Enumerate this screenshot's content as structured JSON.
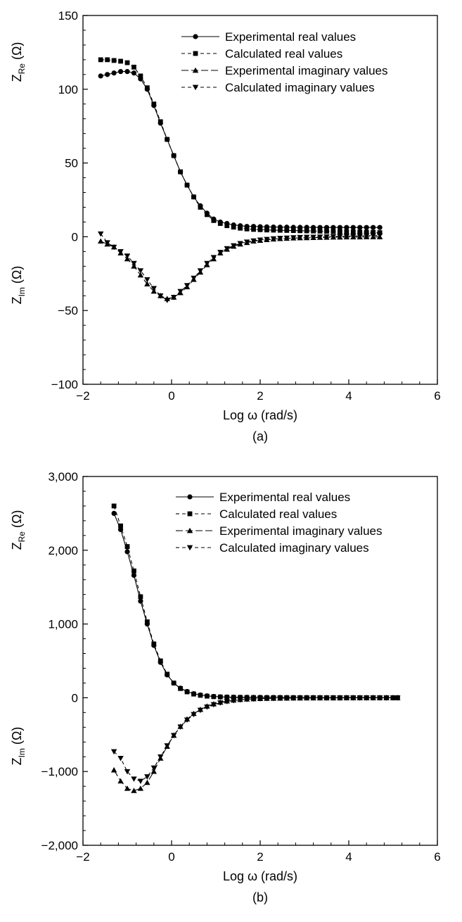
{
  "figure": {
    "panel_a_label": "(a)",
    "panel_b_label": "(b)"
  },
  "chart_data": [
    {
      "panel": "(a)",
      "type": "line",
      "title": "",
      "xlabel": "Log ω (rad/s)",
      "ylabel_top": {
        "main": "Z",
        "sub": "Re",
        "unit": " (Ω)"
      },
      "ylabel_bottom": {
        "main": "Z",
        "sub": "Im",
        "unit": " (Ω)"
      },
      "xlim": [
        -2,
        6
      ],
      "ylim": [
        -100,
        150
      ],
      "xticks": [
        -2,
        0,
        2,
        4,
        6
      ],
      "yticks": [
        -100,
        -50,
        0,
        50,
        100,
        150
      ],
      "xtick_labels": [
        "−2",
        "0",
        "2",
        "4",
        "6"
      ],
      "ytick_labels": [
        "−100",
        "−50",
        "0",
        "50",
        "100",
        "150"
      ],
      "grid": false,
      "legend_position": "top-right",
      "series": [
        {
          "name": "Experimental real values",
          "marker": "circle",
          "dash": "solid",
          "x": [
            -1.6,
            -1.45,
            -1.3,
            -1.15,
            -1.0,
            -0.85,
            -0.7,
            -0.55,
            -0.4,
            -0.25,
            -0.1,
            0.05,
            0.2,
            0.35,
            0.5,
            0.65,
            0.8,
            0.95,
            1.1,
            1.25,
            1.4,
            1.55,
            1.7,
            1.85,
            2.0,
            2.15,
            2.3,
            2.45,
            2.6,
            2.75,
            2.9,
            3.05,
            3.2,
            3.35,
            3.5,
            3.65,
            3.8,
            3.95,
            4.1,
            4.25,
            4.4,
            4.55,
            4.7
          ],
          "y": [
            109,
            110,
            111,
            112,
            112,
            111,
            107,
            100,
            89,
            77,
            66,
            55,
            44,
            35,
            27,
            21,
            16,
            12,
            10,
            9,
            8,
            7.5,
            7,
            7,
            6.8,
            6.7,
            6.6,
            6.5,
            6.5,
            6.4,
            6.4,
            6.4,
            6.3,
            6.3,
            6.3,
            6.3,
            6.3,
            6.3,
            6.3,
            6.3,
            6.3,
            6.3,
            6.3
          ]
        },
        {
          "name": "Calculated real values",
          "marker": "square",
          "dash": "dashed",
          "x": [
            -1.6,
            -1.45,
            -1.3,
            -1.15,
            -1.0,
            -0.85,
            -0.7,
            -0.55,
            -0.4,
            -0.25,
            -0.1,
            0.05,
            0.2,
            0.35,
            0.5,
            0.65,
            0.8,
            0.95,
            1.1,
            1.25,
            1.4,
            1.55,
            1.7,
            1.85,
            2.0,
            2.15,
            2.3,
            2.45,
            2.6,
            2.75,
            2.9,
            3.05,
            3.2,
            3.35,
            3.5,
            3.65,
            3.8,
            3.95,
            4.1,
            4.25,
            4.4,
            4.55,
            4.7
          ],
          "y": [
            120,
            120,
            119.5,
            119,
            118,
            115,
            109,
            101,
            90,
            78,
            66,
            55,
            44,
            35,
            27,
            20,
            15,
            11,
            9,
            7.5,
            6.5,
            5.8,
            5.3,
            5,
            4.8,
            4.6,
            4.5,
            4.4,
            4.3,
            4.2,
            4.1,
            4,
            3.9,
            3.8,
            3.7,
            3.6,
            3.5,
            3.4,
            3.3,
            3.2,
            3.1,
            3.0,
            2.8
          ]
        },
        {
          "name": "Experimental imaginary values",
          "marker": "triangle-up",
          "dash": "long-dash",
          "x": [
            -1.6,
            -1.45,
            -1.3,
            -1.15,
            -1.0,
            -0.85,
            -0.7,
            -0.55,
            -0.4,
            -0.25,
            -0.1,
            0.05,
            0.2,
            0.35,
            0.5,
            0.65,
            0.8,
            0.95,
            1.1,
            1.25,
            1.4,
            1.55,
            1.7,
            1.85,
            2.0,
            2.15,
            2.3,
            2.45,
            2.6,
            2.75,
            2.9,
            3.05,
            3.2,
            3.35,
            3.5,
            3.65,
            3.8,
            3.95,
            4.1,
            4.25,
            4.4,
            4.55,
            4.7
          ],
          "y": [
            -3,
            -5,
            -7,
            -11,
            -15,
            -20,
            -26,
            -32,
            -37,
            -40,
            -42,
            -41,
            -38,
            -34,
            -29,
            -24,
            -19,
            -15,
            -11,
            -8.5,
            -6.5,
            -5,
            -4,
            -3,
            -2.5,
            -2,
            -1.6,
            -1.3,
            -1.1,
            -0.9,
            -0.8,
            -0.7,
            -0.6,
            -0.5,
            -0.4,
            -0.3,
            -0.3,
            -0.2,
            -0.2,
            -0.2,
            -0.1,
            -0.1,
            -0.1
          ]
        },
        {
          "name": "Calculated imaginary values",
          "marker": "triangle-down",
          "dash": "dashed",
          "x": [
            -1.6,
            -1.45,
            -1.3,
            -1.15,
            -1.0,
            -0.85,
            -0.7,
            -0.55,
            -0.4,
            -0.25,
            -0.1,
            0.05,
            0.2,
            0.35,
            0.5,
            0.65,
            0.8,
            0.95,
            1.1,
            1.25,
            1.4,
            1.55,
            1.7,
            1.85,
            2.0,
            2.15,
            2.3,
            2.45,
            2.6,
            2.75,
            2.9,
            3.05,
            3.2,
            3.35,
            3.5,
            3.65,
            3.8,
            3.95,
            4.1,
            4.25,
            4.4,
            4.55,
            4.7
          ],
          "y": [
            2,
            -4,
            -7,
            -10,
            -13,
            -18,
            -23,
            -29,
            -35,
            -40,
            -43,
            -41,
            -37,
            -33,
            -28,
            -23,
            -18,
            -14,
            -10.5,
            -8,
            -6,
            -4.5,
            -3.5,
            -2.7,
            -2.1,
            -1.7,
            -1.3,
            -1.0,
            -0.8,
            -0.6,
            -0.4,
            -0.3,
            -0.2,
            -0.1,
            0,
            0.2,
            0.3,
            0.4,
            0.5,
            0.6,
            0.7,
            0.8,
            0.9
          ]
        }
      ]
    },
    {
      "panel": "(b)",
      "type": "line",
      "title": "",
      "xlabel": "Log ω (rad/s)",
      "ylabel_top": {
        "main": "Z",
        "sub": "Re",
        "unit": " (Ω)"
      },
      "ylabel_bottom": {
        "main": "Z",
        "sub": "Im",
        "unit": " (Ω)"
      },
      "xlim": [
        -2,
        6
      ],
      "ylim": [
        -2000,
        3000
      ],
      "xticks": [
        -2,
        0,
        2,
        4,
        6
      ],
      "yticks": [
        -2000,
        -1000,
        0,
        1000,
        2000,
        3000
      ],
      "xtick_labels": [
        "−2",
        "0",
        "2",
        "4",
        "6"
      ],
      "ytick_labels": [
        "−2,000",
        "−1,000",
        "0",
        "1,000",
        "2,000",
        "3,000"
      ],
      "grid": false,
      "legend_position": "top-right",
      "series": [
        {
          "name": "Experimental real values",
          "marker": "circle",
          "dash": "solid",
          "x": [
            -1.3,
            -1.15,
            -1.0,
            -0.85,
            -0.7,
            -0.55,
            -0.4,
            -0.25,
            -0.1,
            0.05,
            0.2,
            0.35,
            0.5,
            0.65,
            0.8,
            0.95,
            1.1,
            1.25,
            1.4,
            1.55,
            1.7,
            1.85,
            2.0,
            2.15,
            2.3,
            2.45,
            2.6,
            2.75,
            2.9,
            3.05,
            3.2,
            3.35,
            3.5,
            3.65,
            3.8,
            3.95,
            4.1,
            4.25,
            4.4,
            4.55,
            4.7,
            4.85,
            5.0,
            5.1
          ],
          "y": [
            2500,
            2280,
            1980,
            1660,
            1310,
            1000,
            710,
            480,
            310,
            200,
            130,
            85,
            55,
            38,
            26,
            18,
            13,
            10,
            8,
            7,
            6,
            5,
            5,
            4,
            4,
            4,
            3,
            3,
            3,
            3,
            3,
            3,
            2,
            2,
            2,
            2,
            2,
            2,
            2,
            2,
            2,
            2,
            2,
            2
          ]
        },
        {
          "name": "Calculated real values",
          "marker": "square",
          "dash": "dashed",
          "x": [
            -1.3,
            -1.15,
            -1.0,
            -0.85,
            -0.7,
            -0.55,
            -0.4,
            -0.25,
            -0.1,
            0.05,
            0.2,
            0.35,
            0.5,
            0.65,
            0.8,
            0.95,
            1.1,
            1.25,
            1.4,
            1.55,
            1.7,
            1.85,
            2.0,
            2.15,
            2.3,
            2.45,
            2.6,
            2.75,
            2.9,
            3.05,
            3.2,
            3.35,
            3.5,
            3.65,
            3.8,
            3.95,
            4.1,
            4.25,
            4.4,
            4.55,
            4.7,
            4.85,
            5.0,
            5.1
          ],
          "y": [
            2600,
            2330,
            2050,
            1720,
            1370,
            1030,
            730,
            500,
            320,
            200,
            125,
            80,
            50,
            33,
            22,
            15,
            11,
            8,
            6,
            5,
            4,
            3,
            3,
            2,
            2,
            2,
            2,
            1,
            1,
            1,
            1,
            1,
            1,
            1,
            1,
            1,
            1,
            1,
            1,
            1,
            1,
            1,
            1,
            1
          ]
        },
        {
          "name": "Experimental imaginary values",
          "marker": "triangle-up",
          "dash": "long-dash",
          "x": [
            -1.3,
            -1.15,
            -1.0,
            -0.85,
            -0.7,
            -0.55,
            -0.4,
            -0.25,
            -0.1,
            0.05,
            0.2,
            0.35,
            0.5,
            0.65,
            0.8,
            0.95,
            1.1,
            1.25,
            1.4,
            1.55,
            1.7,
            1.85,
            2.0,
            2.15,
            2.3,
            2.45,
            2.6,
            2.75,
            2.9,
            3.05,
            3.2,
            3.35,
            3.5,
            3.65,
            3.8,
            3.95,
            4.1,
            4.25,
            4.4,
            4.55,
            4.7,
            4.85,
            5.0,
            5.1
          ],
          "y": [
            -980,
            -1130,
            -1230,
            -1260,
            -1230,
            -1150,
            -1000,
            -820,
            -660,
            -510,
            -390,
            -290,
            -215,
            -160,
            -115,
            -85,
            -62,
            -45,
            -33,
            -25,
            -19,
            -15,
            -12,
            -10,
            -8,
            -7,
            -6,
            -5,
            -5,
            -4,
            -4,
            -3,
            -3,
            -3,
            -3,
            -2,
            -2,
            -2,
            -2,
            -2,
            -2,
            -2,
            -2,
            -2
          ]
        },
        {
          "name": "Calculated imaginary values",
          "marker": "triangle-down",
          "dash": "dashed",
          "x": [
            -1.3,
            -1.15,
            -1.0,
            -0.85,
            -0.7,
            -0.55,
            -0.4,
            -0.25,
            -0.1,
            0.05,
            0.2,
            0.35,
            0.5,
            0.65,
            0.8,
            0.95,
            1.1,
            1.25,
            1.4,
            1.55,
            1.7,
            1.85,
            2.0,
            2.15,
            2.3,
            2.45,
            2.6,
            2.75,
            2.9,
            3.05,
            3.2,
            3.35,
            3.5,
            3.65,
            3.8,
            3.95,
            4.1,
            4.25,
            4.4,
            4.55,
            4.7,
            4.85,
            5.0,
            5.1
          ],
          "y": [
            -730,
            -820,
            -1000,
            -1100,
            -1130,
            -1070,
            -950,
            -800,
            -650,
            -510,
            -395,
            -300,
            -225,
            -168,
            -124,
            -92,
            -68,
            -50,
            -37,
            -28,
            -21,
            -16,
            -12,
            -9,
            -7,
            -6,
            -5,
            -4,
            -3,
            -3,
            -2,
            -2,
            -2,
            -2,
            -1,
            -1,
            -1,
            -1,
            -1,
            -1,
            -1,
            -1,
            -1,
            -1
          ]
        }
      ]
    }
  ]
}
